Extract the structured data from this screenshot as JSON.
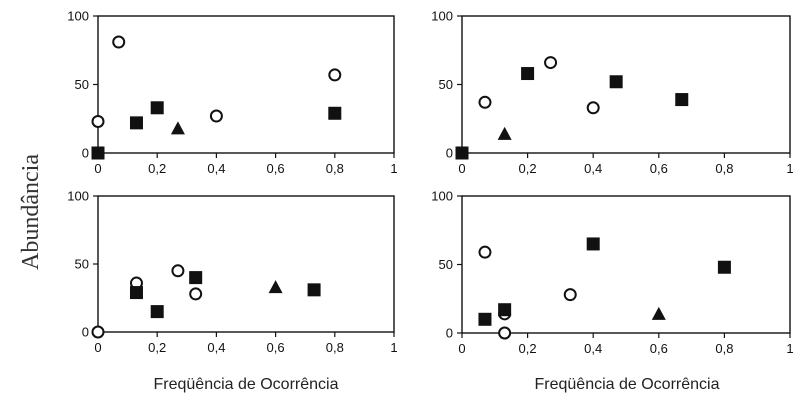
{
  "figure": {
    "ylabel": "Abundância",
    "xlabel": "Freqüência de Ocorrência"
  },
  "chart_data": [
    {
      "type": "scatter",
      "panel": "top-left",
      "xlim": [
        0,
        1
      ],
      "ylim": [
        0,
        100
      ],
      "xticks": [
        "0",
        "0,2",
        "0,4",
        "0,6",
        "0,8",
        "1"
      ],
      "yticks": [
        "0",
        "50",
        "100"
      ],
      "series": [
        {
          "marker": "open-circle",
          "points": [
            [
              0.0,
              23
            ],
            [
              0.07,
              81
            ],
            [
              0.4,
              27
            ],
            [
              0.8,
              57
            ]
          ]
        },
        {
          "marker": "filled-square",
          "points": [
            [
              0.0,
              0
            ],
            [
              0.13,
              22
            ],
            [
              0.2,
              33
            ],
            [
              0.8,
              29
            ]
          ]
        },
        {
          "marker": "filled-triangle",
          "points": [
            [
              0.27,
              18
            ]
          ]
        }
      ]
    },
    {
      "type": "scatter",
      "panel": "top-right",
      "xlim": [
        0,
        1
      ],
      "ylim": [
        0,
        100
      ],
      "xticks": [
        "0",
        "0,2",
        "0,4",
        "0,6",
        "0,8",
        "1"
      ],
      "yticks": [
        "0",
        "50",
        "100"
      ],
      "series": [
        {
          "marker": "open-circle",
          "points": [
            [
              0.0,
              0
            ],
            [
              0.07,
              37
            ],
            [
              0.27,
              66
            ],
            [
              0.4,
              33
            ]
          ]
        },
        {
          "marker": "filled-square",
          "points": [
            [
              0.0,
              0
            ],
            [
              0.2,
              58
            ],
            [
              0.47,
              52
            ],
            [
              0.67,
              39
            ]
          ]
        },
        {
          "marker": "filled-triangle",
          "points": [
            [
              0.13,
              14
            ]
          ]
        }
      ]
    },
    {
      "type": "scatter",
      "panel": "bottom-left",
      "xlim": [
        0,
        1
      ],
      "ylim": [
        0,
        100
      ],
      "xticks": [
        "0",
        "0,2",
        "0,4",
        "0,6",
        "0,8",
        "1"
      ],
      "yticks": [
        "0",
        "50",
        "100"
      ],
      "series": [
        {
          "marker": "open-circle",
          "points": [
            [
              0.0,
              0
            ],
            [
              0.13,
              36
            ],
            [
              0.27,
              45
            ],
            [
              0.33,
              28
            ]
          ]
        },
        {
          "marker": "filled-square",
          "points": [
            [
              0.13,
              29
            ],
            [
              0.2,
              15
            ],
            [
              0.33,
              40
            ],
            [
              0.73,
              31
            ]
          ]
        },
        {
          "marker": "filled-triangle",
          "points": [
            [
              0.6,
              33
            ]
          ]
        }
      ]
    },
    {
      "type": "scatter",
      "panel": "bottom-right",
      "xlim": [
        0,
        1
      ],
      "ylim": [
        0,
        100
      ],
      "xticks": [
        "0",
        "0,2",
        "0,4",
        "0,6",
        "0,8",
        "1"
      ],
      "yticks": [
        "0",
        "50",
        "100"
      ],
      "series": [
        {
          "marker": "open-circle",
          "points": [
            [
              0.07,
              59
            ],
            [
              0.13,
              14
            ],
            [
              0.13,
              0
            ],
            [
              0.33,
              28
            ]
          ]
        },
        {
          "marker": "filled-square",
          "points": [
            [
              0.07,
              10
            ],
            [
              0.13,
              17
            ],
            [
              0.4,
              65
            ],
            [
              0.8,
              48
            ]
          ]
        },
        {
          "marker": "filled-triangle",
          "points": [
            [
              0.6,
              14
            ]
          ]
        }
      ]
    }
  ]
}
